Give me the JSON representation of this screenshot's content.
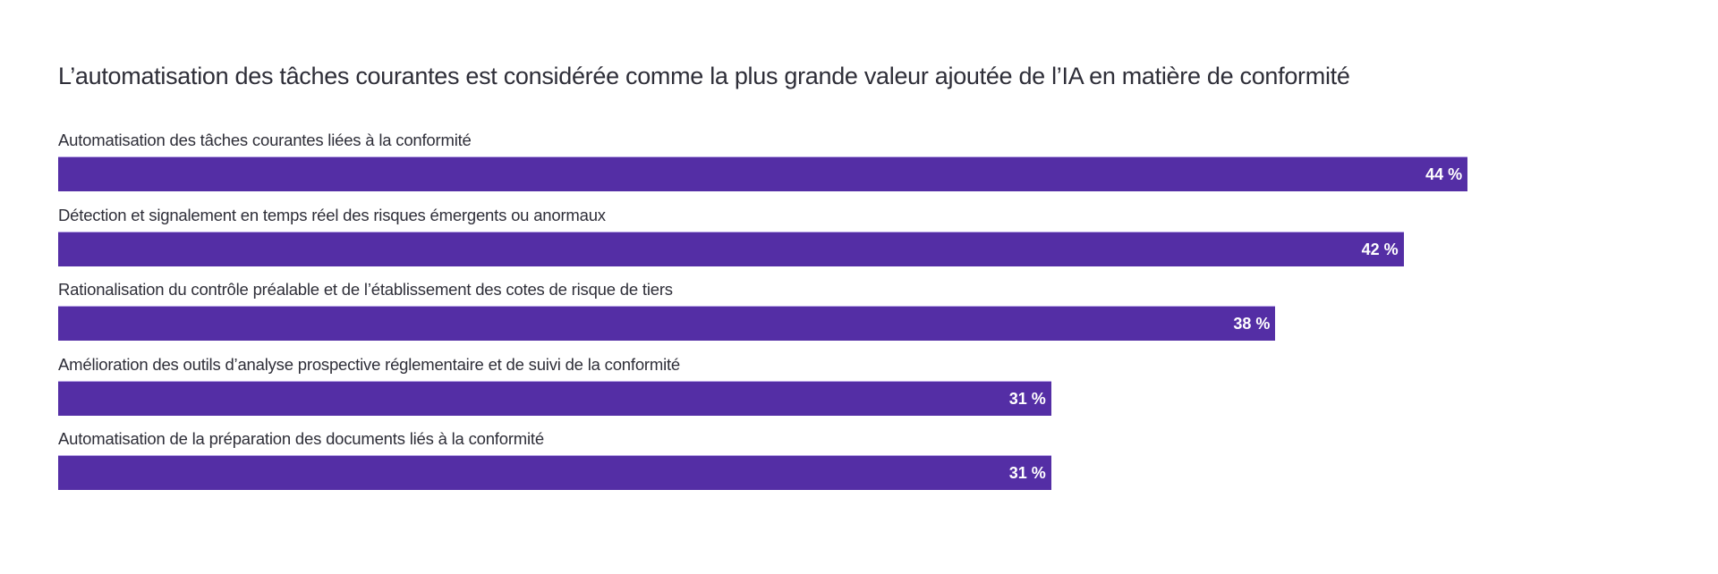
{
  "chart_data": {
    "type": "bar",
    "orientation": "horizontal",
    "title": "L’automatisation des tâches courantes est considérée comme la plus grande valeur ajoutée de l’IA en matière de conformité",
    "categories": [
      "Automatisation des tâches courantes liées à la conformité",
      "Détection et signalement en temps réel des risques émergents ou anormaux",
      "Rationalisation du contrôle préalable et de l’établissement des cotes de risque de tiers",
      "Amélioration des outils d’analyse prospective réglementaire et de suivi de la conformité",
      "Automatisation de la préparation des documents liés à la conformité"
    ],
    "values": [
      44,
      42,
      38,
      31,
      31
    ],
    "data_labels": [
      "44 %",
      "42 %",
      "38 %",
      "31 %",
      "31 %"
    ],
    "unit": "%",
    "bar_color": "#542ea5",
    "grid": false,
    "legend": "none"
  }
}
